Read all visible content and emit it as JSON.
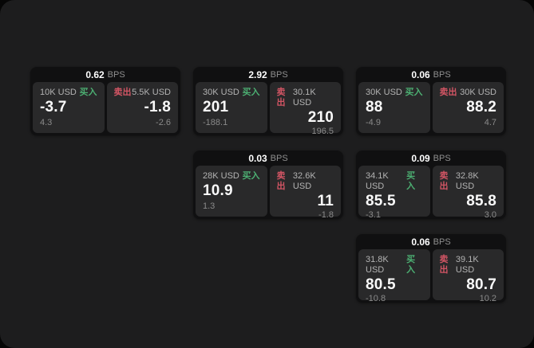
{
  "labels": {
    "bps_unit": "BPS",
    "buy": "买入",
    "sell": "卖出"
  },
  "colors": {
    "page_background": "#1d1d1e",
    "outer_background": "#060606",
    "card_background": "#101011",
    "panel_background": "#29292a",
    "buy_green": "#4caf72",
    "sell_red": "#d25564",
    "primary_text": "#fafafa",
    "muted_text": "#8a8a8a",
    "label_text": "#b3b3b3"
  },
  "cards": [
    {
      "bps": "0.62",
      "buy": {
        "amount": "10K USD",
        "price": "-3.7",
        "delta": "4.3"
      },
      "sell": {
        "amount": "5.5K USD",
        "price": "-1.8",
        "delta": "-2.6"
      }
    },
    {
      "bps": "2.92",
      "buy": {
        "amount": "30K USD",
        "price": "201",
        "delta": "-188.1"
      },
      "sell": {
        "amount": "30.1K USD",
        "price": "210",
        "delta": "196.5"
      }
    },
    {
      "bps": "0.06",
      "buy": {
        "amount": "30K USD",
        "price": "88",
        "delta": "-4.9"
      },
      "sell": {
        "amount": "30K USD",
        "price": "88.2",
        "delta": "4.7"
      }
    },
    {
      "bps": "0.03",
      "buy": {
        "amount": "28K USD",
        "price": "10.9",
        "delta": "1.3"
      },
      "sell": {
        "amount": "32.6K USD",
        "price": "11",
        "delta": "-1.8"
      }
    },
    {
      "bps": "0.09",
      "buy": {
        "amount": "34.1K USD",
        "price": "85.5",
        "delta": "-3.1"
      },
      "sell": {
        "amount": "32.8K USD",
        "price": "85.8",
        "delta": "3.0"
      }
    },
    {
      "bps": "0.06",
      "buy": {
        "amount": "31.8K USD",
        "price": "80.5",
        "delta": "-10.8"
      },
      "sell": {
        "amount": "39.1K USD",
        "price": "80.7",
        "delta": "10.2"
      }
    }
  ]
}
